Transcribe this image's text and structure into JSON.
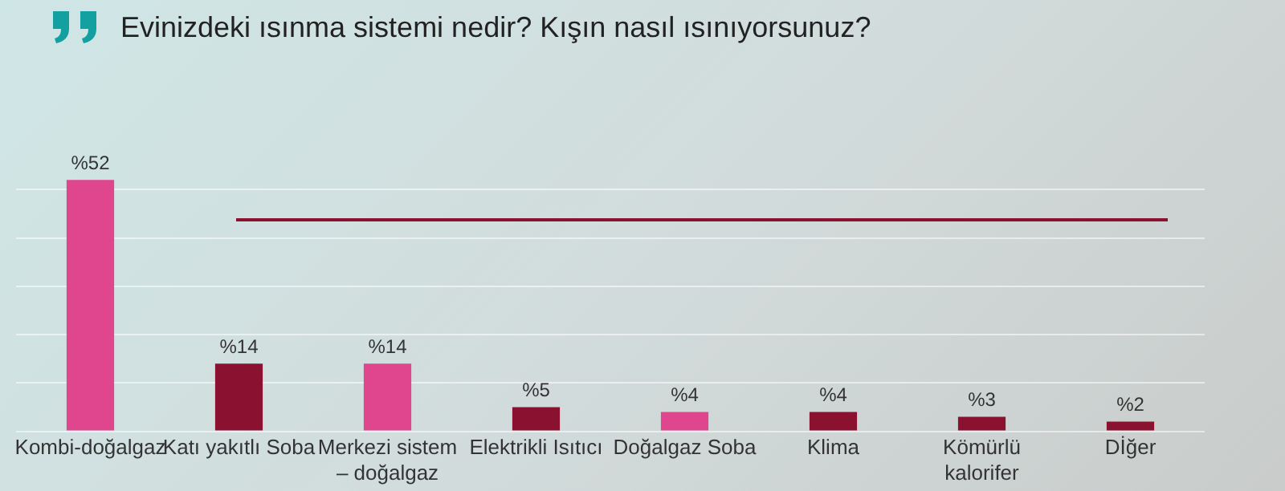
{
  "chart_data": {
    "type": "bar",
    "title": "Evinizdeki ısınma sistemi nedir? Kışın nasıl ısınıyorsunuz?",
    "categories": [
      "Kombi-doğalgaz",
      "Katı yakıtlı Soba",
      "Merkezi sistem – doğalgaz",
      "Elektrikli Isıtıcı",
      "Doğalgaz Soba",
      "Klima",
      "Kömürlü kalorifer",
      "Dİğer"
    ],
    "values": [
      52,
      14,
      14,
      5,
      4,
      4,
      3,
      2
    ],
    "colors": [
      "#e0468e",
      "#8a1230",
      "#e0468e",
      "#8a1230",
      "#e0468e",
      "#8a1230",
      "#8a1230",
      "#8a1230"
    ],
    "value_labels": [
      "%52",
      "%14",
      "%14",
      "%5",
      "%4",
      "%4",
      "%3",
      "%2"
    ],
    "yticks": [
      {
        "value": 0,
        "label": null
      },
      {
        "value": 10,
        "label": null
      },
      {
        "value": 20,
        "label": null
      },
      {
        "value": 30,
        "label": null
      },
      {
        "value": 40,
        "label": null
      },
      {
        "value": 50,
        "label": null
      }
    ],
    "grid": "y",
    "tick_labels": "x",
    "legend": false
  }
}
